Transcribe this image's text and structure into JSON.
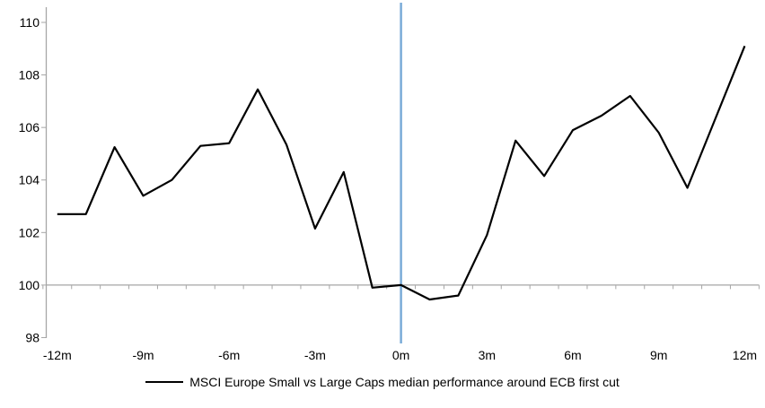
{
  "chart_data": {
    "type": "line",
    "title": "",
    "x": [
      -12,
      -11,
      -10,
      -9,
      -8,
      -7,
      -6,
      -5,
      -4,
      -3,
      -2,
      -1,
      0,
      1,
      2,
      3,
      4,
      5,
      6,
      7,
      8,
      9,
      10,
      11,
      12
    ],
    "series": [
      {
        "name": "MSCI Europe Small vs Large Caps median performance around ECB first cut",
        "values": [
          102.7,
          102.7,
          105.25,
          103.4,
          104.0,
          105.3,
          105.4,
          107.45,
          105.35,
          102.15,
          104.3,
          99.9,
          100.0,
          99.45,
          99.6,
          101.9,
          105.5,
          104.15,
          105.9,
          106.45,
          107.2,
          105.8,
          103.7,
          106.4,
          109.1
        ]
      }
    ],
    "x_tick_labels": [
      "-12m",
      "-9m",
      "-6m",
      "-3m",
      "0m",
      "3m",
      "6m",
      "9m",
      "12m"
    ],
    "x_tick_values": [
      -12,
      -9,
      -6,
      -3,
      0,
      3,
      6,
      9,
      12
    ],
    "y_ticks": [
      98,
      100,
      102,
      104,
      106,
      108,
      110
    ],
    "ylim": [
      98,
      110
    ],
    "xlabel": "",
    "ylabel": "",
    "grid": false,
    "baseline_y": 100,
    "event_line_x": 0,
    "legend_position": "bottom-center"
  },
  "colors": {
    "series_line": "#000000",
    "event_line": "#7AABD8",
    "baseline_axis": "#A6A6A6",
    "tick_text": "#000000",
    "background": "#FFFFFF"
  }
}
